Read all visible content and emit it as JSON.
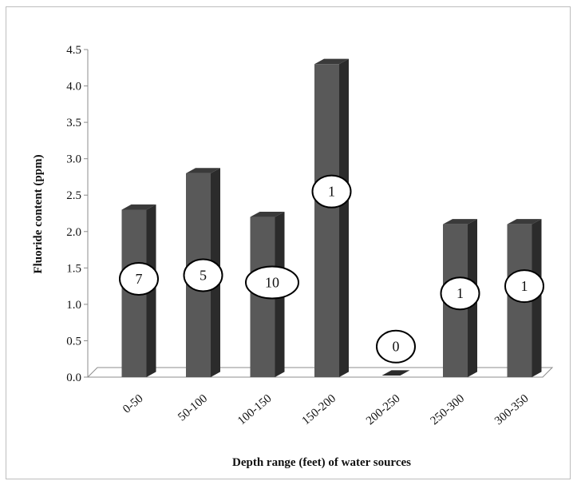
{
  "chart_data": {
    "type": "bar",
    "categories": [
      "0-50",
      "50-100",
      "100-150",
      "150-200",
      "200-250",
      "250-300",
      "300-350"
    ],
    "values": [
      2.3,
      2.8,
      2.2,
      4.3,
      0.0,
      2.1,
      2.1
    ],
    "annotations": [
      "7",
      "5",
      "10",
      "1",
      "0",
      "1",
      "1"
    ],
    "annotation_levels": [
      1.35,
      1.4,
      1.3,
      2.55,
      0.42,
      1.15,
      1.25
    ],
    "xlabel": "Depth range (feet) of water sources",
    "ylabel": "Fluoride content (ppm)",
    "ylim": [
      0,
      4.5
    ],
    "yticks": [
      "0.0",
      "0.5",
      "1.0",
      "1.5",
      "2.0",
      "2.5",
      "3.0",
      "3.5",
      "4.0",
      "4.5"
    ],
    "grid": false,
    "bar_color": "#595959"
  }
}
